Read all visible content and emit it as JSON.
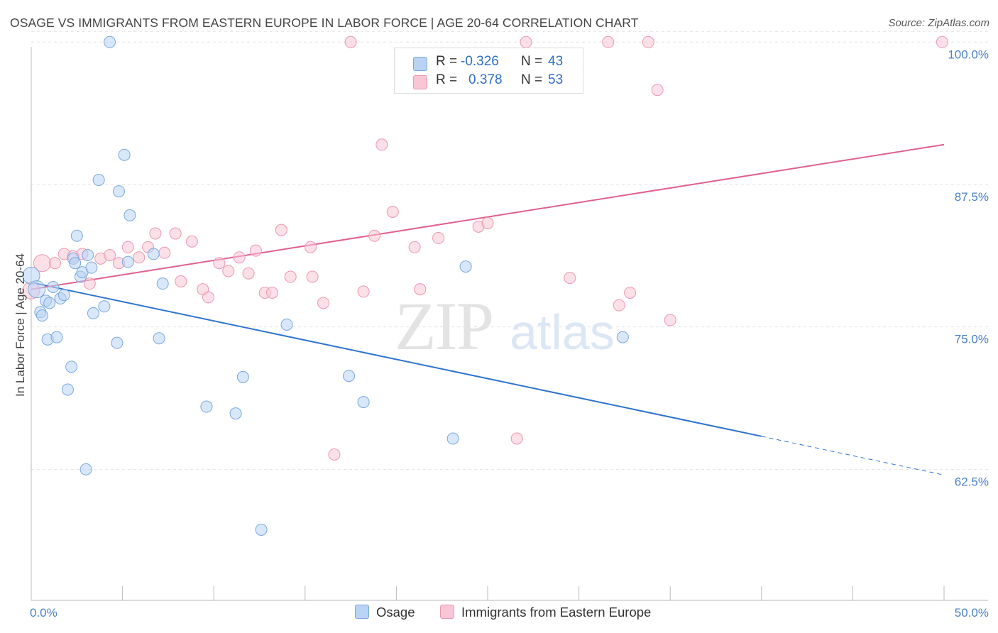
{
  "title": "OSAGE VS IMMIGRANTS FROM EASTERN EUROPE IN LABOR FORCE | AGE 20-64 CORRELATION CHART",
  "source": "Source: ZipAtlas.com",
  "watermark": {
    "zip": "ZIP",
    "atlas": "atlas"
  },
  "legend": {
    "rows": [
      {
        "r_label": "R =",
        "r_value": "-0.326",
        "n_label": "N =",
        "n_value": "43"
      },
      {
        "r_label": "R =",
        "r_value": "0.378",
        "n_label": "N =",
        "n_value": "53"
      }
    ]
  },
  "colors": {
    "osage_fill": "#b8d3f4",
    "osage_stroke": "#7aa8de",
    "osage_line": "#2f73d0",
    "imm_fill": "#f8c6d5",
    "imm_stroke": "#ec97b0",
    "imm_line": "#e0608d",
    "grid": "#e2e2e2",
    "axis_text": "#4a80c8"
  },
  "chart_data": {
    "type": "scatter",
    "title": "OSAGE VS IMMIGRANTS FROM EASTERN EUROPE IN LABOR FORCE | AGE 20-64 CORRELATION CHART",
    "ylabel": "In Labor Force | Age 20-64",
    "xlabel": "",
    "xlim": [
      0,
      50
    ],
    "ylim": [
      51,
      101.2
    ],
    "x_tick_labels": [
      {
        "value": 0,
        "label": "0.0%"
      },
      {
        "value": 50,
        "label": "50.0%"
      }
    ],
    "y_ticks": [
      {
        "value": 100,
        "label": "100.0%"
      },
      {
        "value": 87.5,
        "label": "87.5%"
      },
      {
        "value": 75,
        "label": "75.0%"
      },
      {
        "value": 62.5,
        "label": "62.5%"
      }
    ],
    "grid": true,
    "series": [
      {
        "name": "Osage",
        "r": -0.326,
        "n": 43,
        "trend": {
          "x0": 0,
          "y0": 78.9,
          "x1": 40,
          "y1": 65.4,
          "dash_to_x": 50,
          "dash_to_y": 62.0
        },
        "points": [
          [
            0.0,
            79.5
          ],
          [
            0.3,
            78.3
          ],
          [
            0.5,
            76.3
          ],
          [
            0.6,
            76.0
          ],
          [
            0.8,
            77.3
          ],
          [
            0.9,
            73.9
          ],
          [
            1.0,
            77.1
          ],
          [
            1.2,
            78.5
          ],
          [
            1.4,
            74.1
          ],
          [
            1.6,
            77.5
          ],
          [
            1.8,
            77.8
          ],
          [
            2.0,
            69.5
          ],
          [
            2.2,
            71.5
          ],
          [
            2.3,
            81.0
          ],
          [
            2.4,
            80.6
          ],
          [
            2.5,
            83.0
          ],
          [
            2.7,
            79.4
          ],
          [
            2.8,
            79.8
          ],
          [
            3.1,
            81.3
          ],
          [
            3.0,
            62.5
          ],
          [
            3.3,
            80.2
          ],
          [
            3.4,
            76.2
          ],
          [
            3.7,
            87.9
          ],
          [
            4.0,
            76.8
          ],
          [
            4.3,
            100.0
          ],
          [
            4.7,
            73.6
          ],
          [
            4.8,
            86.9
          ],
          [
            5.1,
            90.1
          ],
          [
            5.3,
            80.7
          ],
          [
            5.4,
            84.8
          ],
          [
            6.7,
            81.4
          ],
          [
            7.0,
            74.0
          ],
          [
            7.2,
            78.8
          ],
          [
            9.6,
            68.0
          ],
          [
            11.2,
            67.4
          ],
          [
            11.6,
            70.6
          ],
          [
            12.6,
            57.2
          ],
          [
            14.0,
            75.2
          ],
          [
            17.4,
            70.7
          ],
          [
            18.2,
            68.4
          ],
          [
            23.1,
            65.2
          ],
          [
            23.8,
            80.3
          ],
          [
            32.4,
            74.1
          ]
        ]
      },
      {
        "name": "Immigrants from Eastern Europe",
        "r": 0.378,
        "n": 53,
        "trend": {
          "x0": 0,
          "y0": 78.3,
          "x1": 50,
          "y1": 91.0
        },
        "points": [
          [
            0.0,
            78.2
          ],
          [
            0.6,
            80.6
          ],
          [
            1.3,
            80.6
          ],
          [
            1.8,
            81.4
          ],
          [
            2.3,
            81.2
          ],
          [
            2.8,
            81.4
          ],
          [
            3.2,
            78.8
          ],
          [
            3.8,
            81.0
          ],
          [
            4.3,
            81.3
          ],
          [
            4.8,
            80.6
          ],
          [
            5.3,
            82.0
          ],
          [
            5.9,
            81.1
          ],
          [
            6.4,
            82.0
          ],
          [
            6.8,
            83.2
          ],
          [
            7.3,
            81.5
          ],
          [
            7.9,
            83.2
          ],
          [
            8.2,
            79.0
          ],
          [
            8.8,
            82.5
          ],
          [
            9.4,
            78.3
          ],
          [
            9.7,
            77.6
          ],
          [
            10.3,
            80.6
          ],
          [
            10.8,
            79.9
          ],
          [
            11.4,
            81.1
          ],
          [
            11.9,
            79.7
          ],
          [
            12.3,
            81.7
          ],
          [
            12.8,
            78.0
          ],
          [
            13.2,
            78.0
          ],
          [
            13.7,
            83.5
          ],
          [
            14.2,
            79.4
          ],
          [
            15.3,
            82.0
          ],
          [
            15.4,
            79.4
          ],
          [
            16.0,
            77.1
          ],
          [
            16.6,
            63.8
          ],
          [
            17.5,
            100.0
          ],
          [
            18.2,
            78.1
          ],
          [
            18.8,
            83.0
          ],
          [
            19.2,
            91.0
          ],
          [
            19.8,
            85.1
          ],
          [
            21.0,
            82.0
          ],
          [
            21.3,
            78.3
          ],
          [
            22.3,
            82.8
          ],
          [
            24.5,
            83.8
          ],
          [
            25.0,
            84.1
          ],
          [
            26.6,
            65.2
          ],
          [
            27.1,
            100.0
          ],
          [
            29.5,
            79.3
          ],
          [
            31.6,
            100.0
          ],
          [
            32.2,
            76.9
          ],
          [
            32.8,
            78.0
          ],
          [
            33.8,
            100.0
          ],
          [
            34.3,
            95.8
          ],
          [
            35.0,
            75.6
          ],
          [
            49.9,
            100.0
          ]
        ]
      }
    ]
  }
}
